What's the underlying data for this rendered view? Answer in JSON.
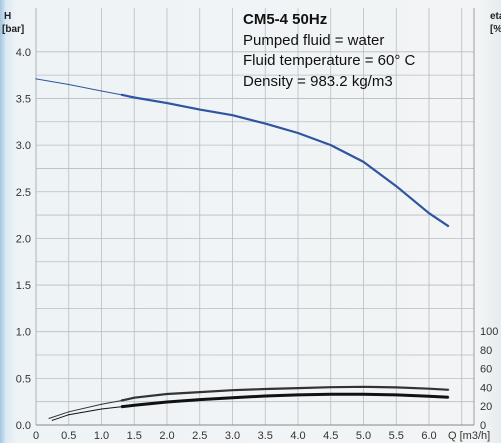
{
  "chart_data": {
    "type": "line",
    "x_label": "Q [m3/h]",
    "y_left_label": "H",
    "y_left_unit": "[bar]",
    "y_right_label": "eta",
    "y_right_unit": "[%]",
    "x_range": [
      0,
      6.5
    ],
    "y_left_range": [
      0,
      4.2
    ],
    "y_right_range": [
      0,
      130
    ],
    "x_ticks": [
      "0",
      "0.5",
      "1.0",
      "1.5",
      "2.0",
      "2.5",
      "3.0",
      "3.5",
      "4.0",
      "4.5",
      "5.0",
      "5.5",
      "6.0"
    ],
    "x_ticks_last": "Q [m3/h]",
    "y_left_ticks": [
      "0.0",
      "0.5",
      "1.0",
      "1.5",
      "2.0",
      "2.5",
      "3.0",
      "3.5",
      "4.0"
    ],
    "y_right_ticks": [
      "0",
      "20",
      "40",
      "60",
      "80",
      "100"
    ],
    "grid": true,
    "annotation": {
      "title": "CM5-4  50Hz",
      "lines": [
        "Pumped fluid = water",
        "Fluid temperature = 60° C",
        "Density = 983.2 kg/m3"
      ]
    },
    "series": [
      {
        "axis": "left",
        "color": "#2f55a0",
        "x": [
          0,
          0.5,
          1.0,
          1.3,
          1.5,
          2.0,
          2.5,
          3.0,
          3.5,
          4.0,
          4.5,
          5.0,
          5.5,
          6.0,
          6.3
        ],
        "y": [
          3.71,
          3.65,
          3.58,
          3.54,
          3.51,
          3.45,
          3.38,
          3.32,
          3.23,
          3.13,
          3.0,
          2.82,
          2.56,
          2.27,
          2.13
        ]
      },
      {
        "axis": "right",
        "color": "#333333",
        "x": [
          0.2,
          0.5,
          1.0,
          1.3,
          1.5,
          2.0,
          2.5,
          3.0,
          3.5,
          4.0,
          4.5,
          5.0,
          5.5,
          6.0,
          6.3
        ],
        "y": [
          7,
          14,
          22,
          26,
          29,
          33,
          35,
          37,
          38.3,
          39.3,
          40.2,
          40.6,
          40,
          38.6,
          37.5
        ]
      },
      {
        "axis": "right",
        "color": "#111111",
        "x": [
          0.25,
          0.5,
          1.0,
          1.3,
          1.5,
          2.0,
          2.5,
          3.0,
          3.5,
          4.0,
          4.5,
          5.0,
          5.5,
          6.0,
          6.3
        ],
        "y": [
          5,
          11,
          17,
          19.5,
          21,
          24.5,
          27,
          29,
          30.8,
          32,
          32.8,
          32.8,
          32,
          30.5,
          29.5
        ]
      }
    ]
  }
}
